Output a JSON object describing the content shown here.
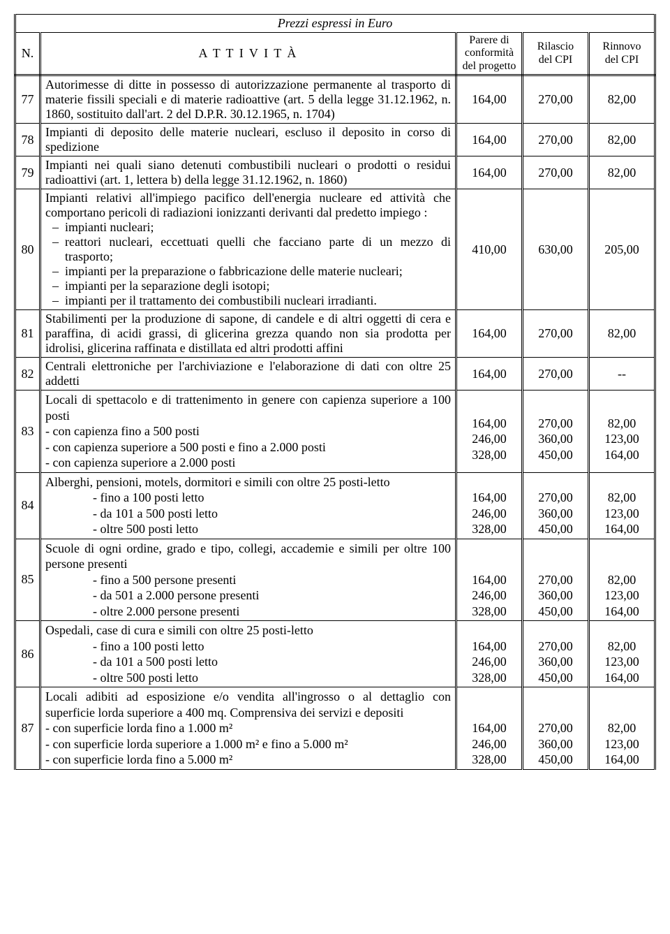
{
  "title": "Prezzi espressi in Euro",
  "headers": {
    "n": "N.",
    "activity": "A T T I V I T À",
    "col1": "Parere di\nconformità\ndel progetto",
    "col2": "Rilascio\ndel CPI",
    "col3": "Rinnovo\ndel CPI"
  },
  "rows": [
    {
      "n": "77",
      "text": "Autorimesse di ditte in possesso di autorizzazione permanente al trasporto di materie fissili speciali e di materie radioattive (art. 5 della legge 31.12.1962, n. 1860, sostituito dall'art. 2 del D.P.R. 30.12.1965, n. 1704)",
      "v1": "164,00",
      "v2": "270,00",
      "v3": "82,00"
    },
    {
      "n": "78",
      "text": "Impianti di deposito delle materie nucleari, escluso il deposito in corso di spedizione",
      "v1": "164,00",
      "v2": "270,00",
      "v3": "82,00"
    },
    {
      "n": "79",
      "text": "Impianti nei quali siano detenuti combustibili nucleari o prodotti o residui radioattivi (art. 1, lettera b) della legge 31.12.1962, n. 1860)",
      "v1": "164,00",
      "v2": "270,00",
      "v3": "82,00"
    },
    {
      "n": "80",
      "intro": "Impianti relativi all'impiego pacifico dell'energia nucleare ed attività che comportano pericoli di radiazioni ionizzanti derivanti dal predetto impiego :",
      "bullets": [
        "impianti nucleari;",
        "reattori nucleari, eccettuati quelli che facciano parte di un mezzo di trasporto;",
        "impianti per la preparazione o fabbricazione delle materie nucleari;",
        "impianti per la separazione degli isotopi;",
        "impianti per il trattamento dei combustibili nucleari irradianti."
      ],
      "v1": "410,00",
      "v2": "630,00",
      "v3": "205,00"
    },
    {
      "n": "81",
      "text": "Stabilimenti per la produzione di sapone, di candele e di altri oggetti di cera e paraffina, di acidi grassi, di glicerina grezza quando non sia prodotta per idrolisi, glicerina raffinata e distillata ed altri prodotti affini",
      "v1": "164,00",
      "v2": "270,00",
      "v3": "82,00"
    },
    {
      "n": "82",
      "text": "Centrali elettroniche per l'archiviazione e l'elaborazione di dati con oltre 25 addetti",
      "v1": "164,00",
      "v2": "270,00",
      "v3": "--"
    },
    {
      "n": "83",
      "intro": "Locali di spettacolo e di trattenimento in genere con capienza superiore a 100 posti",
      "sublines": [
        {
          "t": "- con capienza fino a 500 posti",
          "v1": "164,00",
          "v2": "270,00",
          "v3": "82,00"
        },
        {
          "t": "- con capienza superiore a 500 posti e fino a 2.000 posti",
          "v1": "246,00",
          "v2": "360,00",
          "v3": "123,00"
        },
        {
          "t": "- con capienza superiore a 2.000 posti",
          "v1": "328,00",
          "v2": "450,00",
          "v3": "164,00"
        }
      ]
    },
    {
      "n": "84",
      "intro": "Alberghi, pensioni, motels, dormitori e simili con oltre 25 posti-letto",
      "sublines": [
        {
          "t": "- fino a 100 posti letto",
          "indent": true,
          "v1": "164,00",
          "v2": "270,00",
          "v3": "82,00"
        },
        {
          "t": "- da 101 a 500 posti letto",
          "indent": true,
          "v1": "246,00",
          "v2": "360,00",
          "v3": "123,00"
        },
        {
          "t": "- oltre 500 posti letto",
          "indent": true,
          "v1": "328,00",
          "v2": "450,00",
          "v3": "164,00"
        }
      ]
    },
    {
      "n": "85",
      "intro": "Scuole di ogni ordine, grado e tipo, collegi, accademie e simili per oltre 100 persone presenti",
      "sublines": [
        {
          "t": "- fino a 500 persone presenti",
          "indent": true,
          "v1": "164,00",
          "v2": "270,00",
          "v3": "82,00"
        },
        {
          "t": "- da 501 a 2.000 persone presenti",
          "indent": true,
          "v1": "246,00",
          "v2": "360,00",
          "v3": "123,00"
        },
        {
          "t": "- oltre 2.000 persone presenti",
          "indent": true,
          "v1": "328,00",
          "v2": "450,00",
          "v3": "164,00"
        }
      ]
    },
    {
      "n": "86",
      "intro": "Ospedali, case di cura e simili con oltre 25 posti-letto",
      "sublines": [
        {
          "t": "- fino a 100 posti letto",
          "indent": true,
          "v1": "164,00",
          "v2": "270,00",
          "v3": "82,00"
        },
        {
          "t": "- da 101 a 500 posti letto",
          "indent": true,
          "v1": "246,00",
          "v2": "360,00",
          "v3": "123,00"
        },
        {
          "t": "- oltre 500 posti letto",
          "indent": true,
          "v1": "328,00",
          "v2": "450,00",
          "v3": "164,00"
        }
      ]
    },
    {
      "n": "87",
      "intro": "Locali adibiti ad esposizione e/o vendita all'ingrosso o al dettaglio con superficie lorda superiore a 400 mq. Comprensiva dei servizi e depositi",
      "sublines": [
        {
          "t": "- con superficie lorda fino a 1.000 m²",
          "v1": "164,00",
          "v2": "270,00",
          "v3": "82,00"
        },
        {
          "t": "- con superficie lorda superiore a 1.000 m² e fino a 5.000 m²",
          "v1": "246,00",
          "v2": "360,00",
          "v3": "123,00"
        },
        {
          "t": "- con superficie lorda fino a 5.000 m²",
          "v1": "328,00",
          "v2": "450,00",
          "v3": "164,00"
        }
      ]
    }
  ]
}
